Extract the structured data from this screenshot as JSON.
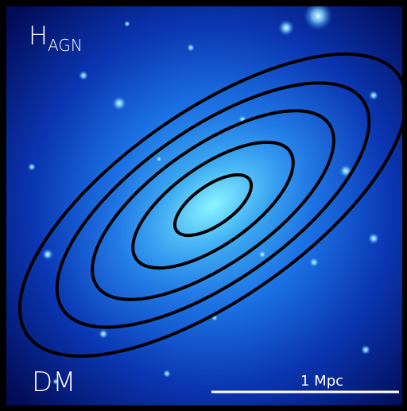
{
  "panel": {
    "title": {
      "main": "H",
      "sub": "AGN"
    },
    "corner_label": "DM",
    "scale_bar_label": "1 Mpc"
  }
}
